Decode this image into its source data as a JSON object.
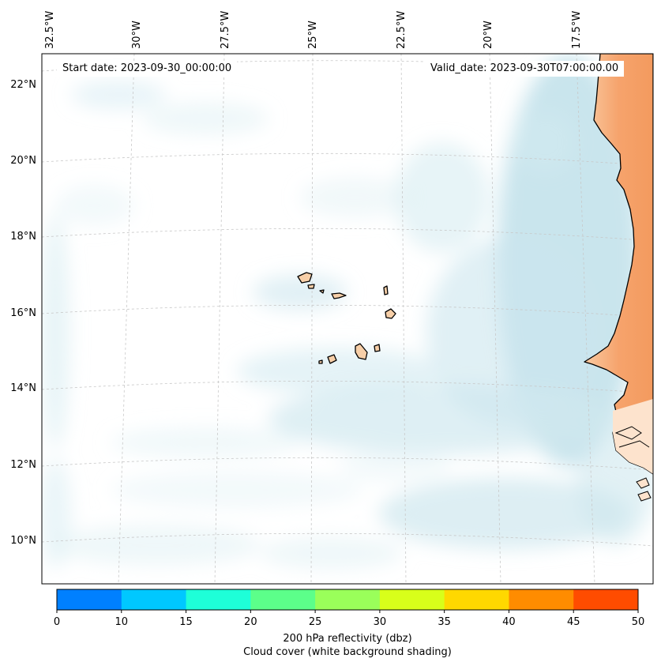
{
  "header": {
    "start_date": "Start date: 2023-09-30_00:00:00",
    "valid_date": "Valid_date: 2023-09-30T07:00:00.00"
  },
  "axes": {
    "lon_labels": [
      "32.5°W",
      "30°W",
      "27.5°W",
      "25°W",
      "22.5°W",
      "20°W",
      "17.5°W"
    ],
    "lat_labels": [
      "22°N",
      "20°N",
      "18°N",
      "16°N",
      "14°N",
      "12°N",
      "10°N"
    ]
  },
  "colorbar": {
    "ticks": [
      "0",
      "10",
      "15",
      "20",
      "25",
      "30",
      "35",
      "40",
      "45",
      "50"
    ],
    "colors": [
      "#0080ff",
      "#00c8ff",
      "#1effd8",
      "#5cff8a",
      "#9aff5a",
      "#d8ff1a",
      "#ffd800",
      "#ff8c00",
      "#ff4c00"
    ],
    "label_line1": "200 hPa reflectivity (dbz)",
    "label_line2": "Cloud cover (white background shading)"
  },
  "styles": {
    "cloud_color": "#b7dde9",
    "land_fill": "#f6a36c",
    "island_fill": "#f7cfa8",
    "coast_color": "#000000",
    "grid_color": "#c8c8c8"
  }
}
